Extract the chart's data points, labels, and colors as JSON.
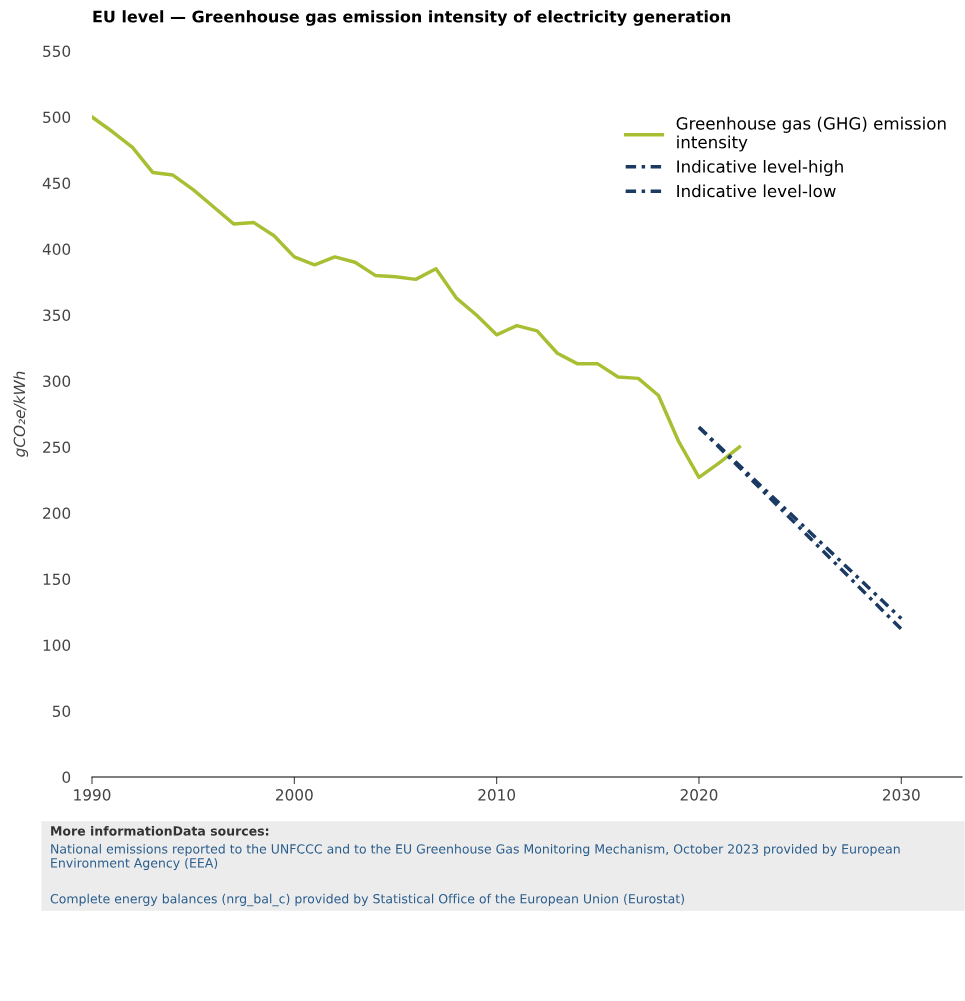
{
  "chart_data": {
    "type": "line",
    "title": "EU level — Greenhouse gas emission intensity of electricity generation",
    "ylabel": "gCO₂e/kWh",
    "xlim": [
      1990,
      2033
    ],
    "xticks": [
      1990,
      2000,
      2010,
      2020,
      2030
    ],
    "ylim": [
      0,
      550
    ],
    "yticks": [
      0,
      50,
      100,
      150,
      200,
      250,
      300,
      350,
      400,
      450,
      500,
      550
    ],
    "grid": false,
    "legend": "top right",
    "series": [
      {
        "name": "Greenhouse gas (GHG) emission intensity",
        "color": "#a9bf33",
        "line_style": "solid",
        "x": [
          1990,
          1991,
          1992,
          1993,
          1994,
          1995,
          1996,
          1997,
          1998,
          1999,
          2000,
          2001,
          2002,
          2003,
          2004,
          2005,
          2006,
          2007,
          2008,
          2009,
          2010,
          2011,
          2012,
          2013,
          2014,
          2015,
          2016,
          2017,
          2018,
          2019,
          2020,
          2021,
          2022
        ],
        "values": [
          500,
          489,
          477,
          458,
          456,
          445,
          432,
          419,
          420,
          410,
          394,
          388,
          394,
          390,
          380,
          379,
          377,
          385,
          363,
          350,
          335,
          342,
          338,
          321,
          313,
          313,
          303,
          302,
          289,
          254,
          227,
          238,
          250
        ]
      },
      {
        "name": "Indicative level-high",
        "color": "#1b3a63",
        "line_style": "dashed",
        "x": [
          2020,
          2030
        ],
        "values": [
          265,
          120
        ]
      },
      {
        "name": "Indicative level-low",
        "color": "#1b3a63",
        "line_style": "dashed",
        "x": [
          2020,
          2030
        ],
        "values": [
          265,
          112
        ]
      }
    ],
    "annotations": [
      "More informationData sources:",
      "National emissions reported to the UNFCCC and to the EU Greenhouse Gas Monitoring Mechanism, October 2023 provided by European Environment Agency (EEA)",
      "Complete energy balances (nrg_bal_c) provided by Statistical Office of the European Union (Eurostat)"
    ]
  }
}
